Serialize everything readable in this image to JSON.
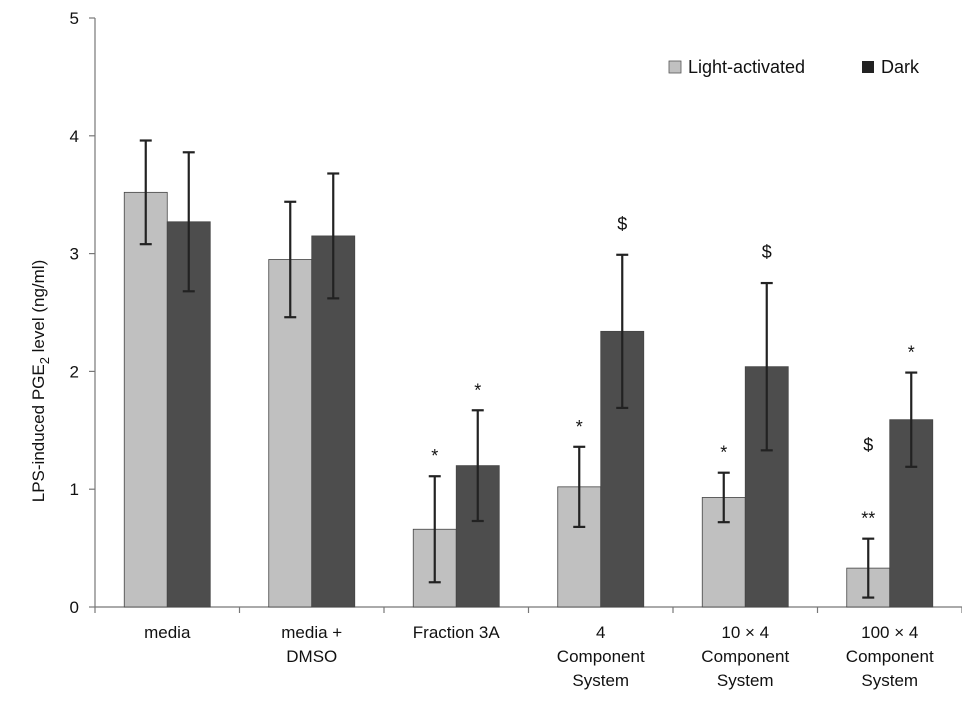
{
  "chart_data": {
    "type": "bar",
    "ylabel_main": "LPS-induced PGE",
    "ylabel_sub": "2",
    "ylabel_tail": " level (ng/ml)",
    "ylim": [
      0,
      5
    ],
    "yticks": [
      0,
      1,
      2,
      3,
      4,
      5
    ],
    "grid": false,
    "legend_position": "top-right",
    "categories": [
      [
        "media"
      ],
      [
        "media +",
        "DMSO"
      ],
      [
        "Fraction 3A"
      ],
      [
        "4",
        "Component",
        "System"
      ],
      [
        "10 × 4",
        "Component",
        "System"
      ],
      [
        "100 × 4",
        "Component",
        "System"
      ]
    ],
    "series": [
      {
        "name": "Light-activated",
        "color": "#c0c0c0",
        "values": [
          3.52,
          2.95,
          0.66,
          1.02,
          0.93,
          0.33
        ],
        "errors": [
          0.44,
          0.49,
          0.45,
          0.34,
          0.21,
          0.25
        ],
        "annotations": [
          "",
          "",
          "*",
          "*",
          "*",
          "**"
        ]
      },
      {
        "name": "Dark",
        "color": "#4d4d4d",
        "values": [
          3.27,
          3.15,
          1.2,
          2.34,
          2.04,
          1.59
        ],
        "errors": [
          0.59,
          0.53,
          0.47,
          0.65,
          0.71,
          0.4
        ],
        "annotations": [
          "",
          "",
          "*",
          "$",
          "$",
          "*"
        ]
      }
    ],
    "extra_annotations": [
      {
        "category": 5,
        "text": "$"
      }
    ]
  }
}
